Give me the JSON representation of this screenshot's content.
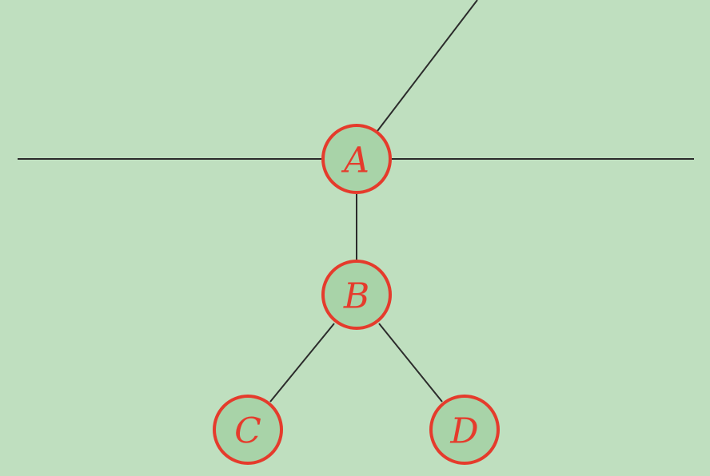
{
  "colors": {
    "background": "#bfdfbf",
    "node_fill": "#a8d3a8",
    "node_stroke": "#e53b2c",
    "label": "#e53b2c",
    "edge": "#2b2b2b"
  },
  "nodes": [
    {
      "id": "A",
      "label": "A"
    },
    {
      "id": "B",
      "label": "B"
    },
    {
      "id": "C",
      "label": "C"
    },
    {
      "id": "D",
      "label": "D"
    }
  ],
  "edges": [
    {
      "from": "A",
      "to": "B"
    },
    {
      "from": "B",
      "to": "C"
    },
    {
      "from": "B",
      "to": "D"
    }
  ]
}
